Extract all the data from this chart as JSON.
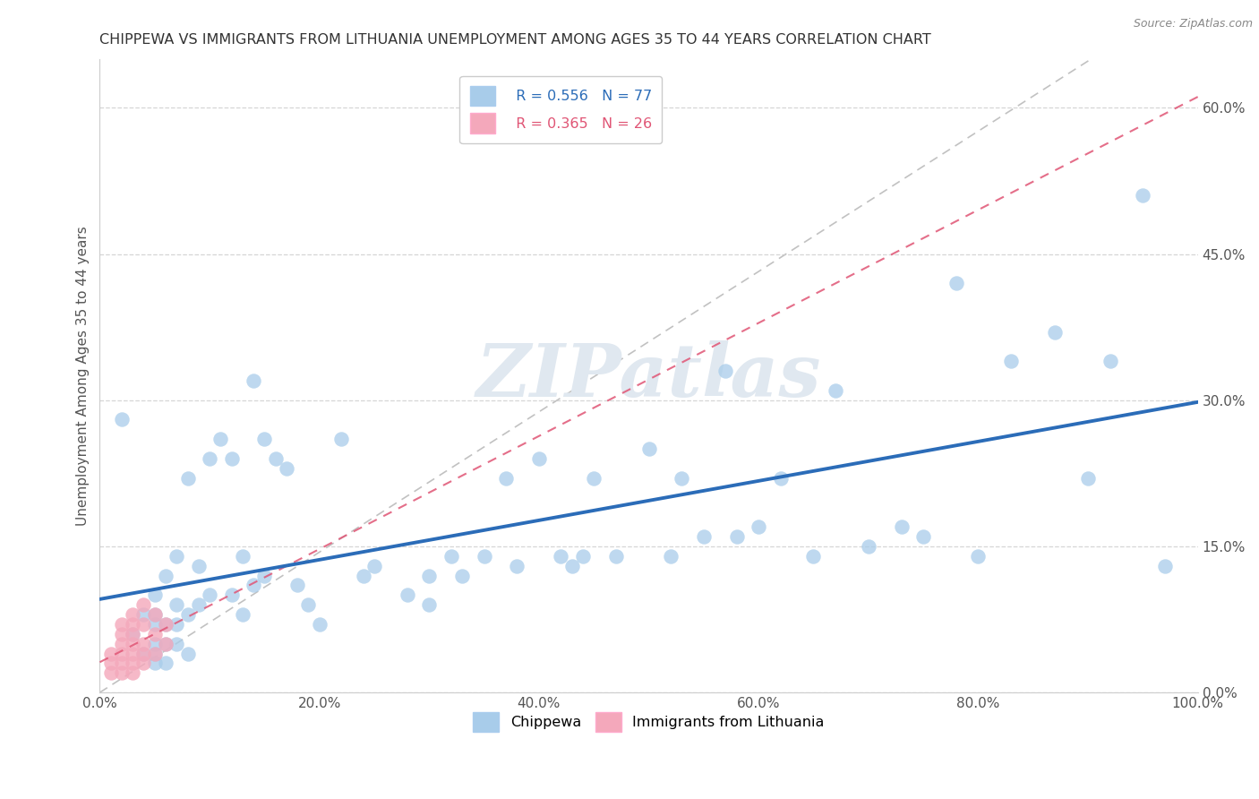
{
  "title": "CHIPPEWA VS IMMIGRANTS FROM LITHUANIA UNEMPLOYMENT AMONG AGES 35 TO 44 YEARS CORRELATION CHART",
  "source": "Source: ZipAtlas.com",
  "ylabel": "Unemployment Among Ages 35 to 44 years",
  "xlim": [
    0,
    1.0
  ],
  "ylim": [
    0,
    0.65
  ],
  "xticks": [
    0.0,
    0.2,
    0.4,
    0.6,
    0.8,
    1.0
  ],
  "xticklabels": [
    "0.0%",
    "20.0%",
    "40.0%",
    "60.0%",
    "80.0%",
    "100.0%"
  ],
  "yticks": [
    0.0,
    0.15,
    0.3,
    0.45,
    0.6
  ],
  "yticklabels": [
    "0.0%",
    "15.0%",
    "30.0%",
    "45.0%",
    "60.0%"
  ],
  "chippewa_color": "#A8CCEA",
  "lithuania_color": "#F4A8BB",
  "chippewa_line_color": "#2B6CB8",
  "lithuania_line_color": "#E05575",
  "r_chippewa": 0.556,
  "n_chippewa": 77,
  "r_lithuania": 0.365,
  "n_lithuania": 26,
  "background_color": "#FFFFFF",
  "chippewa_x": [
    0.02,
    0.03,
    0.04,
    0.04,
    0.05,
    0.05,
    0.05,
    0.05,
    0.05,
    0.05,
    0.06,
    0.06,
    0.06,
    0.06,
    0.07,
    0.07,
    0.07,
    0.07,
    0.08,
    0.08,
    0.08,
    0.09,
    0.09,
    0.1,
    0.1,
    0.11,
    0.12,
    0.12,
    0.13,
    0.13,
    0.14,
    0.14,
    0.15,
    0.15,
    0.16,
    0.17,
    0.18,
    0.19,
    0.2,
    0.22,
    0.24,
    0.25,
    0.28,
    0.3,
    0.3,
    0.32,
    0.33,
    0.35,
    0.37,
    0.38,
    0.4,
    0.42,
    0.43,
    0.44,
    0.45,
    0.47,
    0.5,
    0.52,
    0.53,
    0.55,
    0.57,
    0.58,
    0.6,
    0.62,
    0.65,
    0.67,
    0.7,
    0.73,
    0.75,
    0.78,
    0.8,
    0.83,
    0.87,
    0.9,
    0.92,
    0.95,
    0.97
  ],
  "chippewa_y": [
    0.28,
    0.06,
    0.04,
    0.08,
    0.03,
    0.04,
    0.05,
    0.07,
    0.08,
    0.1,
    0.03,
    0.05,
    0.07,
    0.12,
    0.05,
    0.07,
    0.09,
    0.14,
    0.04,
    0.08,
    0.22,
    0.09,
    0.13,
    0.1,
    0.24,
    0.26,
    0.1,
    0.24,
    0.08,
    0.14,
    0.11,
    0.32,
    0.12,
    0.26,
    0.24,
    0.23,
    0.11,
    0.09,
    0.07,
    0.26,
    0.12,
    0.13,
    0.1,
    0.12,
    0.09,
    0.14,
    0.12,
    0.14,
    0.22,
    0.13,
    0.24,
    0.14,
    0.13,
    0.14,
    0.22,
    0.14,
    0.25,
    0.14,
    0.22,
    0.16,
    0.33,
    0.16,
    0.17,
    0.22,
    0.14,
    0.31,
    0.15,
    0.17,
    0.16,
    0.42,
    0.14,
    0.34,
    0.37,
    0.22,
    0.34,
    0.51,
    0.13
  ],
  "lithuania_x": [
    0.01,
    0.01,
    0.01,
    0.02,
    0.02,
    0.02,
    0.02,
    0.02,
    0.02,
    0.03,
    0.03,
    0.03,
    0.03,
    0.03,
    0.03,
    0.03,
    0.04,
    0.04,
    0.04,
    0.04,
    0.04,
    0.05,
    0.05,
    0.05,
    0.06,
    0.06
  ],
  "lithuania_y": [
    0.02,
    0.03,
    0.04,
    0.02,
    0.03,
    0.04,
    0.05,
    0.06,
    0.07,
    0.02,
    0.03,
    0.04,
    0.05,
    0.06,
    0.07,
    0.08,
    0.03,
    0.04,
    0.05,
    0.07,
    0.09,
    0.04,
    0.06,
    0.08,
    0.05,
    0.07
  ]
}
